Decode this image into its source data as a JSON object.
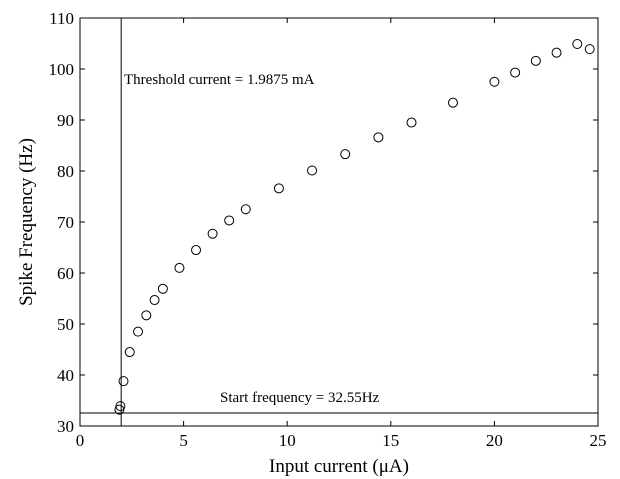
{
  "chart_data": {
    "type": "scatter",
    "xlabel": "Input current (μA)",
    "ylabel": "Spike Frequency (Hz)",
    "xlim": [
      0,
      25
    ],
    "ylim": [
      30,
      110
    ],
    "x_ticks": [
      "0",
      "5",
      "10",
      "15",
      "20",
      "25"
    ],
    "y_ticks": [
      "30",
      "40",
      "50",
      "60",
      "70",
      "80",
      "90",
      "100",
      "110"
    ],
    "grid": false,
    "marker": "open-circle",
    "series": [
      {
        "points": [
          [
            1.9,
            33.2
          ],
          [
            1.95,
            33.9
          ],
          [
            2.1,
            38.8
          ],
          [
            2.4,
            44.5
          ],
          [
            2.8,
            48.5
          ],
          [
            3.2,
            51.7
          ],
          [
            3.6,
            54.7
          ],
          [
            4.0,
            56.9
          ],
          [
            4.8,
            61.0
          ],
          [
            5.6,
            64.5
          ],
          [
            6.4,
            67.7
          ],
          [
            7.2,
            70.3
          ],
          [
            8.0,
            72.5
          ],
          [
            9.6,
            76.6
          ],
          [
            11.2,
            80.1
          ],
          [
            12.8,
            83.3
          ],
          [
            14.4,
            86.6
          ],
          [
            16.0,
            89.5
          ],
          [
            18.0,
            93.4
          ],
          [
            20.0,
            97.5
          ],
          [
            21.0,
            99.3
          ],
          [
            22.0,
            101.6
          ],
          [
            23.0,
            103.2
          ],
          [
            24.0,
            104.9
          ],
          [
            24.6,
            103.9
          ]
        ]
      }
    ],
    "reference_lines": {
      "vertical_x": 1.9875,
      "horizontal_y": 32.55
    },
    "annotations": {
      "threshold": "Threshold current = 1.9875 mA",
      "start": "Start frequency = 32.55Hz"
    }
  }
}
